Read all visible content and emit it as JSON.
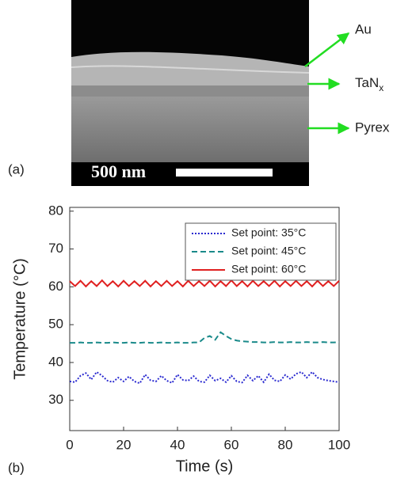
{
  "panel_a": {
    "label": "(a)",
    "layers": {
      "au": "Au",
      "tan": "TaN",
      "tan_sub": "x",
      "pyrex": "Pyrex"
    },
    "scale_bar": "500 nm"
  },
  "panel_b": {
    "label": "(b)"
  },
  "chart_data": {
    "type": "line",
    "xlabel": "Time (s)",
    "ylabel": "Temperature (°C)",
    "x": [
      0,
      2,
      4,
      6,
      8,
      10,
      12,
      14,
      16,
      18,
      20,
      22,
      24,
      26,
      28,
      30,
      32,
      34,
      36,
      38,
      40,
      42,
      44,
      46,
      48,
      50,
      52,
      54,
      56,
      58,
      60,
      62,
      64,
      66,
      68,
      70,
      72,
      74,
      76,
      78,
      80,
      82,
      84,
      86,
      88,
      90,
      92,
      94,
      96,
      98,
      100
    ],
    "series": [
      {
        "name": "Set point: 35°C",
        "color": "#2a2ad0",
        "style": "dot",
        "values": [
          35,
          34.8,
          36.5,
          37.2,
          35.5,
          37.5,
          36.5,
          35.2,
          34.8,
          36,
          35,
          36.3,
          35,
          34.5,
          36.8,
          35.3,
          35,
          36.5,
          35.2,
          34.6,
          36.8,
          35.4,
          35.2,
          36.4,
          35,
          34.8,
          36.6,
          35.2,
          35.8,
          34.8,
          36.5,
          35,
          34.7,
          36.6,
          35.2,
          36.5,
          34.8,
          36.9,
          35.3,
          35,
          36.7,
          35.6,
          37,
          37.5,
          36,
          37.5,
          36,
          35.5,
          35.2,
          35,
          34.8
        ]
      },
      {
        "name": "Set point: 45°C",
        "color": "#1a8a8a",
        "style": "dash",
        "values": [
          45.2,
          45.2,
          45.3,
          45.2,
          45.2,
          45.3,
          45.2,
          45.2,
          45.3,
          45.2,
          45.2,
          45.3,
          45.2,
          45.2,
          45.3,
          45.2,
          45.2,
          45.3,
          45.2,
          45.2,
          45.3,
          45.2,
          45.2,
          45.3,
          45.3,
          46.5,
          47,
          46,
          48,
          47,
          46.2,
          45.8,
          45.6,
          45.5,
          45.4,
          45.4,
          45.3,
          45.3,
          45.4,
          45.3,
          45.3,
          45.4,
          45.3,
          45.3,
          45.4,
          45.3,
          45.3,
          45.4,
          45.3,
          45.3,
          45.4
        ]
      },
      {
        "name": "Set point: 60°C",
        "color": "#e02020",
        "style": "solid",
        "values": [
          61.5,
          60.2,
          61.6,
          60.1,
          61.5,
          60.2,
          61.7,
          60.2,
          61.5,
          60.1,
          61.6,
          60.2,
          61.5,
          60.2,
          61.6,
          60.1,
          61.5,
          60.2,
          61.6,
          60.2,
          61.5,
          60.1,
          61.6,
          60.2,
          61.5,
          60.2,
          61.6,
          60.1,
          61.5,
          60.2,
          61.7,
          60.2,
          61.5,
          60.1,
          61.6,
          60.2,
          61.5,
          60.2,
          61.6,
          60.1,
          61.5,
          60.2,
          61.6,
          60.2,
          61.5,
          60.1,
          61.6,
          60.2,
          61.5,
          60.2,
          61.6
        ]
      }
    ],
    "xlim": [
      0,
      100
    ],
    "xticks": [
      0,
      20,
      40,
      60,
      80,
      100
    ],
    "ylim": [
      22,
      81
    ],
    "yticks": [
      30,
      40,
      50,
      60,
      70,
      80
    ],
    "legend": "top-right"
  }
}
